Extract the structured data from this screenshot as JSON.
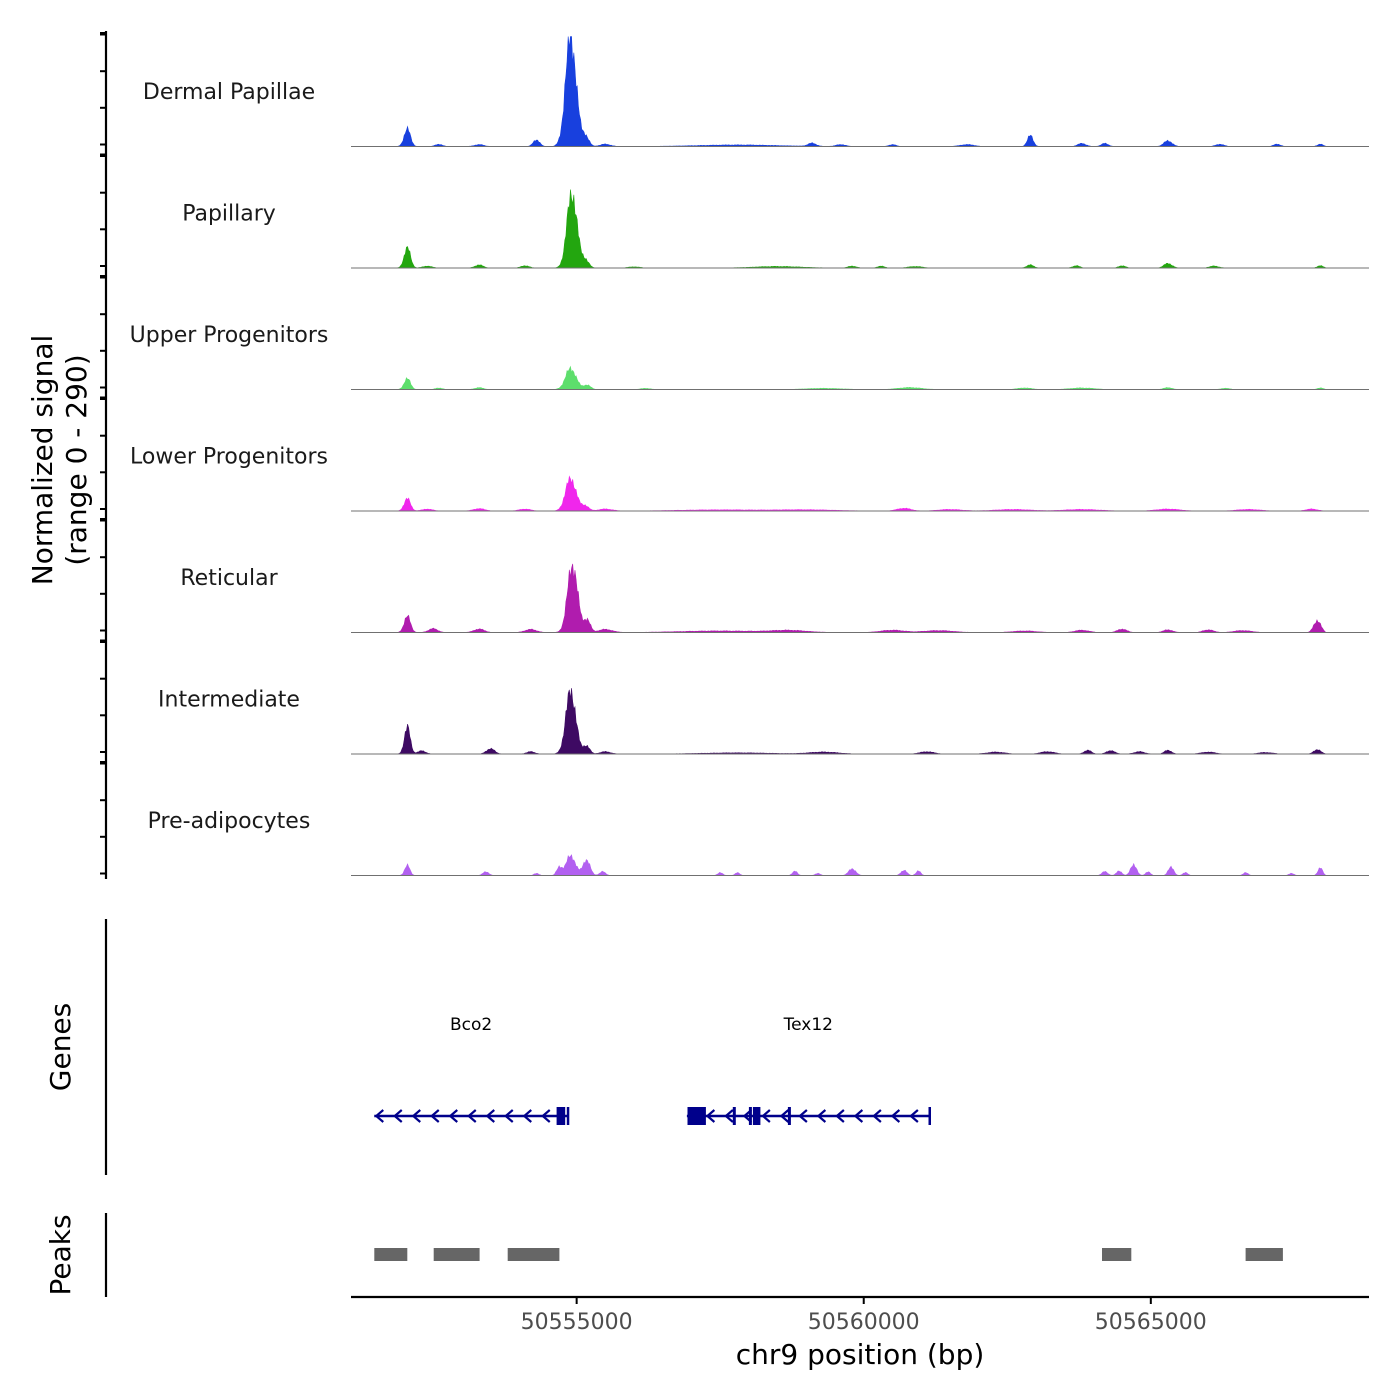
{
  "chart_data": {
    "type": "area",
    "title": "",
    "ylabel": "Normalized signal\n(range 0 - 290)",
    "ylabel_lines": [
      "Normalized signal",
      "(range 0 - 290)"
    ],
    "ylim": [
      0,
      290
    ],
    "xlabel": "chr9 position (bp)",
    "xlim": [
      50551070,
      50568800
    ],
    "xticks": [
      50555000,
      50560000,
      50565000
    ],
    "xtick_labels": [
      "50555000",
      "50560000",
      "50565000"
    ],
    "baseline_color": "#707070",
    "tracks": [
      {
        "name": "Dermal Papillae",
        "color": "#1840de",
        "peaks": [
          [
            50552050,
            45,
            55
          ],
          [
            50552600,
            6,
            60
          ],
          [
            50553300,
            5,
            80
          ],
          [
            50554300,
            18,
            55
          ],
          [
            50554900,
            290,
            90
          ],
          [
            50555150,
            28,
            60
          ],
          [
            50555500,
            6,
            90
          ],
          [
            50557800,
            4,
            700
          ],
          [
            50559100,
            8,
            70
          ],
          [
            50559600,
            5,
            80
          ],
          [
            50560500,
            5,
            60
          ],
          [
            50561800,
            5,
            120
          ],
          [
            50562900,
            28,
            50
          ],
          [
            50563800,
            8,
            70
          ],
          [
            50564200,
            8,
            60
          ],
          [
            50565300,
            15,
            70
          ],
          [
            50566200,
            6,
            70
          ],
          [
            50567200,
            6,
            60
          ],
          [
            50567950,
            6,
            50
          ]
        ]
      },
      {
        "name": "Papillary",
        "color": "#23a60f",
        "peaks": [
          [
            50552050,
            52,
            55
          ],
          [
            50552400,
            5,
            80
          ],
          [
            50553300,
            8,
            70
          ],
          [
            50554100,
            6,
            70
          ],
          [
            50554920,
            198,
            85
          ],
          [
            50555150,
            22,
            60
          ],
          [
            50556000,
            3,
            100
          ],
          [
            50558500,
            4,
            400
          ],
          [
            50559800,
            5,
            70
          ],
          [
            50560300,
            5,
            60
          ],
          [
            50560900,
            4,
            120
          ],
          [
            50562900,
            8,
            60
          ],
          [
            50563700,
            6,
            60
          ],
          [
            50564500,
            6,
            60
          ],
          [
            50565300,
            12,
            70
          ],
          [
            50566100,
            5,
            80
          ],
          [
            50567950,
            6,
            50
          ]
        ]
      },
      {
        "name": "Upper Progenitors",
        "color": "#5dde6c",
        "peaks": [
          [
            50552050,
            28,
            55
          ],
          [
            50552600,
            4,
            60
          ],
          [
            50553300,
            5,
            70
          ],
          [
            50554900,
            55,
            90
          ],
          [
            50555180,
            12,
            60
          ],
          [
            50556200,
            3,
            80
          ],
          [
            50559300,
            3,
            300
          ],
          [
            50560800,
            5,
            200
          ],
          [
            50562800,
            4,
            120
          ],
          [
            50563800,
            4,
            200
          ],
          [
            50565300,
            5,
            70
          ],
          [
            50566300,
            3,
            80
          ],
          [
            50567950,
            4,
            50
          ]
        ]
      },
      {
        "name": "Lower Progenitors",
        "color": "#f026ec",
        "peaks": [
          [
            50552050,
            32,
            55
          ],
          [
            50552400,
            5,
            90
          ],
          [
            50553300,
            6,
            100
          ],
          [
            50554100,
            5,
            100
          ],
          [
            50554900,
            85,
            90
          ],
          [
            50555150,
            14,
            60
          ],
          [
            50555500,
            5,
            120
          ],
          [
            50557500,
            3,
            700
          ],
          [
            50559000,
            3,
            500
          ],
          [
            50560700,
            7,
            120
          ],
          [
            50561500,
            4,
            200
          ],
          [
            50562600,
            4,
            300
          ],
          [
            50563800,
            4,
            300
          ],
          [
            50565300,
            5,
            200
          ],
          [
            50566700,
            4,
            200
          ],
          [
            50567800,
            5,
            100
          ]
        ]
      },
      {
        "name": "Reticular",
        "color": "#b01cae",
        "peaks": [
          [
            50552050,
            42,
            55
          ],
          [
            50552500,
            10,
            80
          ],
          [
            50553300,
            9,
            90
          ],
          [
            50554200,
            8,
            100
          ],
          [
            50554930,
            180,
            85
          ],
          [
            50555180,
            34,
            55
          ],
          [
            50555500,
            8,
            120
          ],
          [
            50557500,
            4,
            700
          ],
          [
            50558700,
            5,
            300
          ],
          [
            50560500,
            6,
            200
          ],
          [
            50561300,
            5,
            250
          ],
          [
            50562800,
            4,
            200
          ],
          [
            50563800,
            6,
            120
          ],
          [
            50564500,
            9,
            80
          ],
          [
            50565300,
            7,
            80
          ],
          [
            50566000,
            7,
            90
          ],
          [
            50566600,
            5,
            150
          ],
          [
            50567900,
            32,
            60
          ]
        ]
      },
      {
        "name": "Intermediate",
        "color": "#3e0a63",
        "peaks": [
          [
            50552050,
            70,
            50
          ],
          [
            50552300,
            8,
            70
          ],
          [
            50553500,
            14,
            70
          ],
          [
            50554200,
            6,
            70
          ],
          [
            50554900,
            165,
            85
          ],
          [
            50555170,
            22,
            55
          ],
          [
            50555500,
            6,
            90
          ],
          [
            50557800,
            3,
            600
          ],
          [
            50559300,
            5,
            250
          ],
          [
            50561100,
            6,
            120
          ],
          [
            50562300,
            5,
            150
          ],
          [
            50563200,
            6,
            120
          ],
          [
            50563900,
            10,
            60
          ],
          [
            50564300,
            9,
            70
          ],
          [
            50564800,
            6,
            90
          ],
          [
            50565300,
            10,
            60
          ],
          [
            50566000,
            5,
            120
          ],
          [
            50567000,
            4,
            120
          ],
          [
            50567900,
            12,
            60
          ]
        ]
      },
      {
        "name": "Pre-adipocytes",
        "color": "#b260f0",
        "peaks": [
          [
            50552050,
            26,
            45
          ],
          [
            50553420,
            10,
            50
          ],
          [
            50554300,
            6,
            40
          ],
          [
            50554700,
            22,
            45
          ],
          [
            50554900,
            52,
            80
          ],
          [
            50555170,
            42,
            60
          ],
          [
            50555450,
            10,
            50
          ],
          [
            50557500,
            8,
            40
          ],
          [
            50557800,
            7,
            40
          ],
          [
            50558800,
            12,
            40
          ],
          [
            50559200,
            6,
            40
          ],
          [
            50559800,
            18,
            60
          ],
          [
            50560700,
            14,
            50
          ],
          [
            50560950,
            12,
            40
          ],
          [
            50564200,
            10,
            50
          ],
          [
            50564450,
            12,
            45
          ],
          [
            50564700,
            30,
            50
          ],
          [
            50564950,
            10,
            40
          ],
          [
            50565350,
            24,
            45
          ],
          [
            50565600,
            8,
            40
          ],
          [
            50566650,
            8,
            40
          ],
          [
            50567450,
            6,
            40
          ],
          [
            50567950,
            20,
            40
          ]
        ]
      }
    ],
    "genes_label": "Genes",
    "gene_color": "#00008b",
    "genes": [
      {
        "name": "Bco2",
        "strand": "-",
        "start": 50551475,
        "end": 50554850,
        "exons": [
          [
            50554650,
            50554800
          ]
        ]
      },
      {
        "name": "Tex12",
        "strand": "-",
        "start": 50556920,
        "end": 50561150,
        "exons": [
          [
            50556930,
            50557250
          ],
          [
            50557720,
            50557760
          ],
          [
            50558000,
            50558050
          ],
          [
            50558070,
            50558200
          ],
          [
            50558680,
            50558720
          ]
        ]
      }
    ],
    "peaks_label": "Peaks",
    "peak_color": "#666666",
    "peak_regions": [
      [
        50551475,
        50552050
      ],
      [
        50552510,
        50553310
      ],
      [
        50553800,
        50554700
      ],
      [
        50564150,
        50564660
      ],
      [
        50566650,
        50567300
      ]
    ]
  }
}
